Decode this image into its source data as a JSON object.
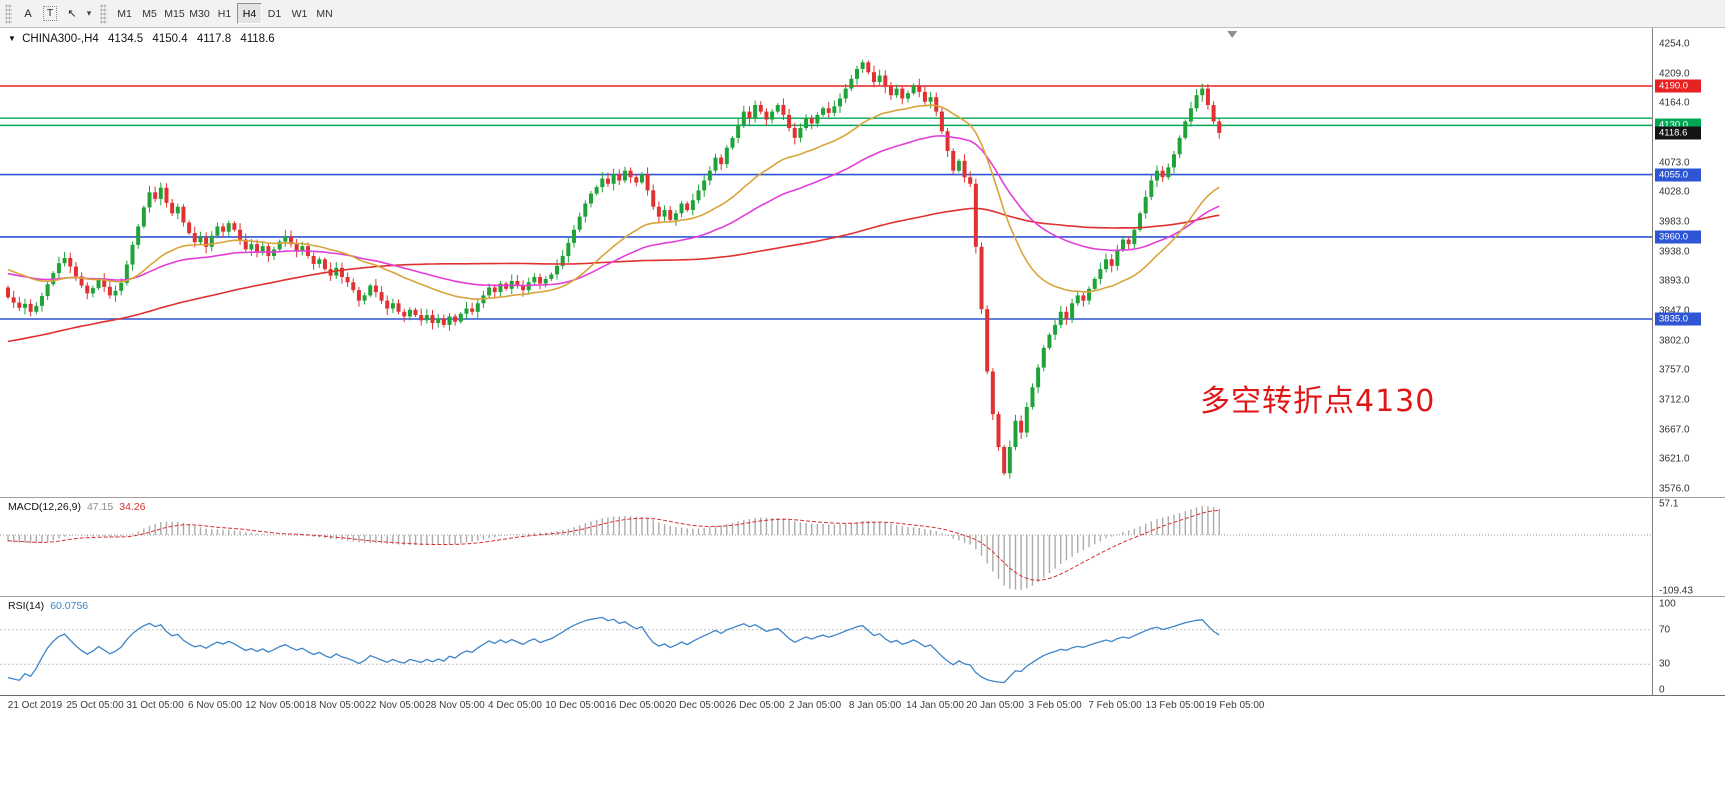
{
  "toolbar": {
    "tools": [
      {
        "name": "text-label-tool",
        "glyph": "A"
      },
      {
        "name": "text-box-tool",
        "glyph": "T"
      },
      {
        "name": "cursor-tool",
        "glyph": "↖"
      },
      {
        "name": "tools-dropdown",
        "glyph": "▾"
      }
    ],
    "timeframes": [
      "M1",
      "M5",
      "M15",
      "M30",
      "H1",
      "H4",
      "D1",
      "W1",
      "MN"
    ],
    "active_timeframe": "H4"
  },
  "chart": {
    "symbol_tf": "CHINA300-,H4",
    "ohlc": {
      "open": "4134.5",
      "high": "4150.4",
      "low": "4117.8",
      "close": "4118.6"
    },
    "annotation": "多空转折点4130",
    "y_axis_labels": [
      "4254.0",
      "4209.0",
      "4164.0",
      "4119.0",
      "4073.0",
      "4028.0",
      "3983.0",
      "3938.0",
      "3893.0",
      "3847.0",
      "3802.0",
      "3757.0",
      "3712.0",
      "3667.0",
      "3621.0",
      "3576.0"
    ],
    "x_axis_labels": [
      "21 Oct 2019",
      "25 Oct 05:00",
      "31 Oct 05:00",
      "6 Nov 05:00",
      "12 Nov 05:00",
      "18 Nov 05:00",
      "22 Nov 05:00",
      "28 Nov 05:00",
      "4 Dec 05:00",
      "10 Dec 05:00",
      "16 Dec 05:00",
      "20 Dec 05:00",
      "26 Dec 05:00",
      "2 Jan 05:00",
      "8 Jan 05:00",
      "14 Jan 05:00",
      "20 Jan 05:00",
      "3 Feb 05:00",
      "7 Feb 05:00",
      "13 Feb 05:00",
      "19 Feb 05:00"
    ],
    "price_tags": [
      {
        "label": "4190.0",
        "price": 4190.0,
        "bg": "#e82222"
      },
      {
        "label": "4130.0",
        "price": 4130.0,
        "bg": "#00a854"
      },
      {
        "label": "4118.6",
        "price": 4118.6,
        "bg": "#141414"
      },
      {
        "label": "4055.0",
        "price": 4055.0,
        "bg": "#2e55d4"
      },
      {
        "label": "3960.0",
        "price": 3960.0,
        "bg": "#2e55d4"
      },
      {
        "label": "3835.0",
        "price": 3835.0,
        "bg": "#2e55d4"
      }
    ]
  },
  "macd": {
    "label": "MACD(12,26,9)",
    "value_main": "47.15",
    "value_signal": "34.26",
    "axis_top": "57.1",
    "axis_bottom": "-109.43",
    "histogram_color": "#ababab",
    "signal_color": "#d83030"
  },
  "rsi": {
    "label": "RSI(14)",
    "value": "60.0756",
    "axis_labels": [
      100,
      70,
      30,
      0
    ],
    "level_lines": [
      70,
      30
    ],
    "line_color": "#3d85c8"
  },
  "chart_data": {
    "type": "candlestick",
    "symbol": "CHINA300-",
    "timeframe": "H4",
    "title": "CHINA300-,H4 4134.5 4150.4 4117.8 4118.6",
    "y_range": [
      3576,
      4254
    ],
    "x_range_labels": [
      "21 Oct 2019",
      "19 Feb 05:00"
    ],
    "candle_up_color": "#1fa339",
    "candle_down_color": "#e03232",
    "current_price": 4118.6,
    "moving_averages": [
      {
        "name": "ma-slow-red",
        "type": "sma",
        "period": 150,
        "color": "#e03030"
      },
      {
        "name": "ma-mid-magenta",
        "type": "ema",
        "period": 60,
        "color": "#e23fd7"
      },
      {
        "name": "ma-fast-orange",
        "type": "ema",
        "period": 30,
        "color": "#d9a43b"
      }
    ],
    "horizontal_lines": [
      {
        "price": 4190,
        "color": "#e82222",
        "width": 1.4
      },
      {
        "price": 4141,
        "color": "#00a854",
        "width": 1.4
      },
      {
        "price": 4130,
        "color": "#00a854",
        "width": 1.4
      },
      {
        "price": 4055,
        "color": "#2e55d4",
        "width": 1.6
      },
      {
        "price": 3960,
        "color": "#2e55d4",
        "width": 1.6
      },
      {
        "price": 3835,
        "color": "#2e55d4",
        "width": 1.6
      }
    ],
    "indicators": {
      "macd": {
        "fast": 12,
        "slow": 26,
        "signal": 9
      },
      "rsi": {
        "period": 14
      }
    },
    "warmup_segments": [
      [
        3600,
        3700,
        55
      ],
      [
        3700,
        3995,
        55
      ],
      [
        3995,
        3878,
        40
      ]
    ],
    "closes": [
      3868,
      3860,
      3852,
      3858,
      3846,
      3855,
      3870,
      3888,
      3905,
      3920,
      3928,
      3915,
      3900,
      3886,
      3874,
      3882,
      3895,
      3884,
      3871,
      3878,
      3890,
      3918,
      3948,
      3976,
      4005,
      4028,
      4018,
      4035,
      4012,
      3996,
      4006,
      3982,
      3966,
      3952,
      3959,
      3945,
      3962,
      3976,
      3968,
      3981,
      3971,
      3956,
      3941,
      3949,
      3936,
      3946,
      3931,
      3941,
      3953,
      3961,
      3949,
      3939,
      3946,
      3931,
      3919,
      3926,
      3911,
      3901,
      3913,
      3899,
      3891,
      3879,
      3863,
      3871,
      3886,
      3876,
      3863,
      3851,
      3859,
      3846,
      3839,
      3849,
      3841,
      3833,
      3841,
      3829,
      3836,
      3826,
      3839,
      3831,
      3843,
      3851,
      3846,
      3859,
      3871,
      3883,
      3876,
      3889,
      3881,
      3893,
      3886,
      3879,
      3891,
      3899,
      3889,
      3896,
      3903,
      3916,
      3931,
      3951,
      3971,
      3991,
      4011,
      4026,
      4036,
      4049,
      4041,
      4056,
      4046,
      4061,
      4051,
      4043,
      4056,
      4031,
      4006,
      3991,
      4001,
      3986,
      3996,
      4011,
      4001,
      4016,
      4031,
      4046,
      4061,
      4081,
      4071,
      4096,
      4111,
      4131,
      4151,
      4141,
      4161,
      4151,
      4139,
      4151,
      4161,
      4146,
      4126,
      4111,
      4126,
      4141,
      4133,
      4146,
      4156,
      4149,
      4159,
      4171,
      4186,
      4201,
      4216,
      4226,
      4211,
      4196,
      4206,
      4189,
      4176,
      4186,
      4171,
      4179,
      4191,
      4181,
      4166,
      4173,
      4151,
      4121,
      4091,
      4061,
      4076,
      4051,
      4041,
      3945,
      3850,
      3755,
      3690,
      3640,
      3600,
      3640,
      3680,
      3662,
      3701,
      3731,
      3761,
      3791,
      3811,
      3826,
      3846,
      3836,
      3859,
      3871,
      3863,
      3881,
      3896,
      3911,
      3926,
      3916,
      3941,
      3956,
      3949,
      3971,
      3996,
      4021,
      4046,
      4061,
      4051,
      4066,
      4086,
      4111,
      4136,
      4156,
      4176,
      4186,
      4161,
      4136,
      4118.6
    ]
  }
}
